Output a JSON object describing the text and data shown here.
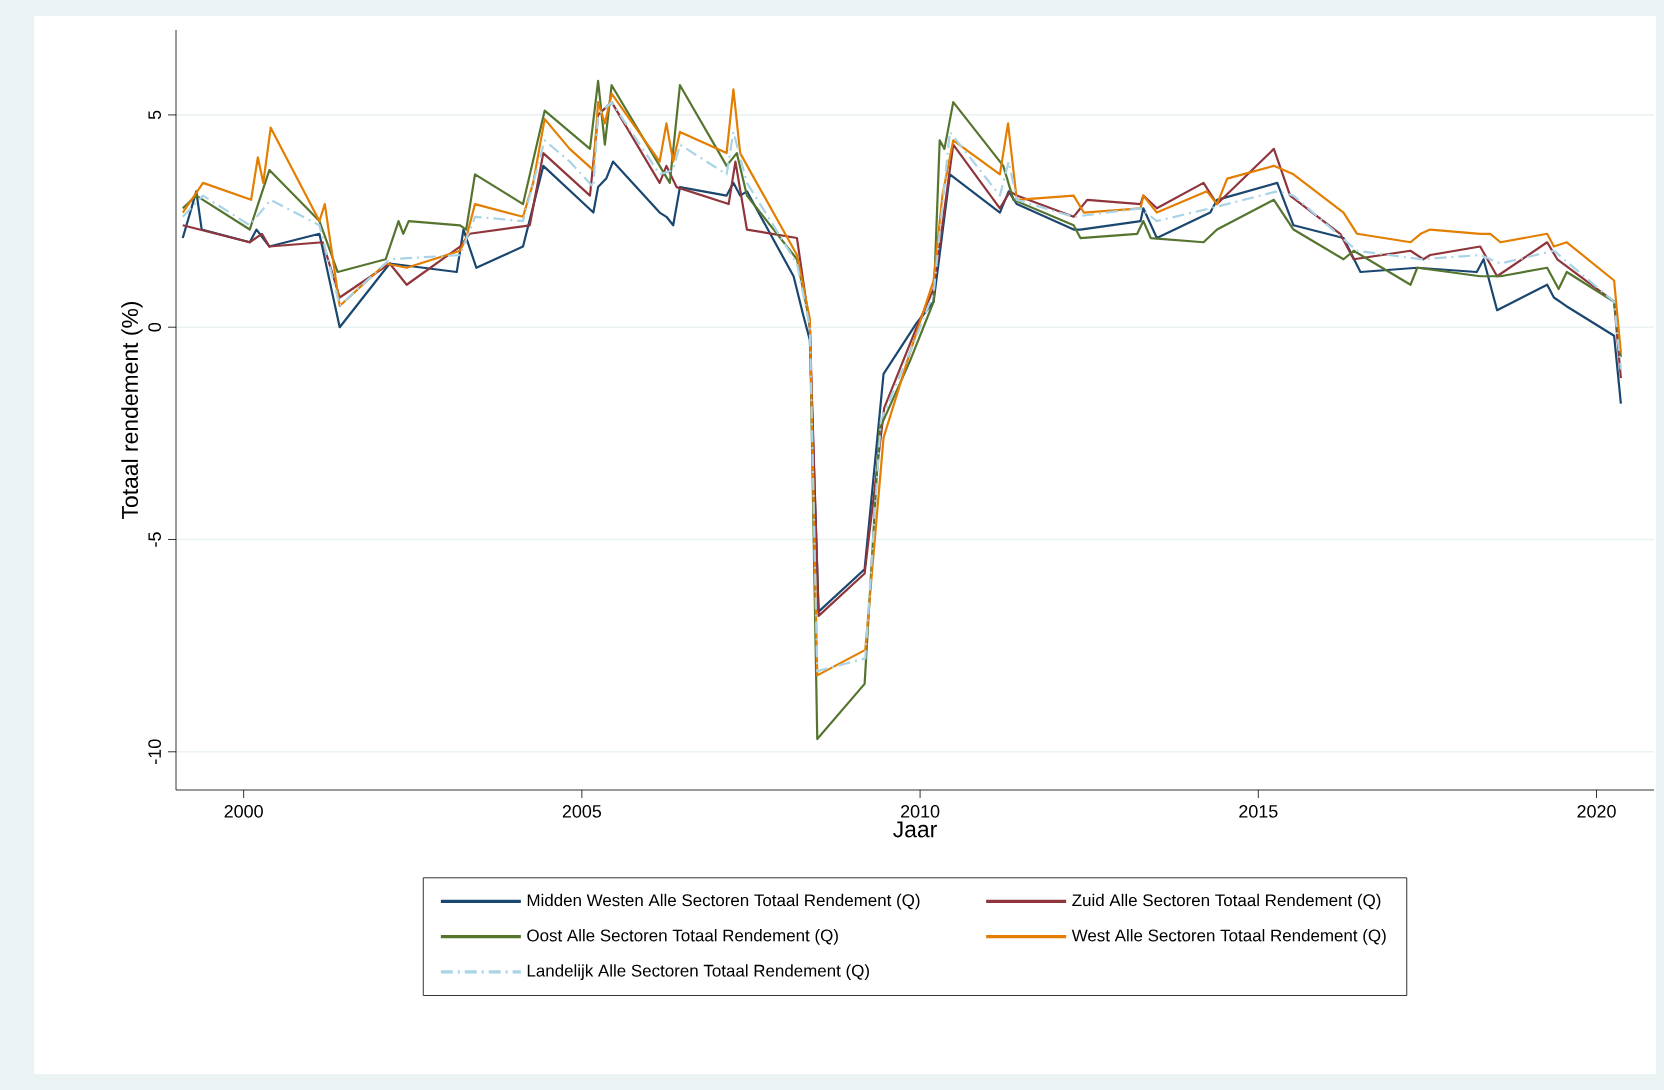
{
  "chart_data": {
    "type": "line",
    "xlabel": "Jaar",
    "ylabel": "Totaal rendement (%)",
    "xlim": [
      1999,
      2020.85
    ],
    "ylim": [
      -10.9,
      7
    ],
    "xticks": [
      2000,
      2005,
      2010,
      2015,
      2020
    ],
    "yticks": [
      -10,
      -5,
      0,
      5
    ],
    "grid": "y",
    "legend": "bottom",
    "marker": "none",
    "series": [
      {
        "name": "Midden Westen Alle Sectoren Totaal Rendement (Q)",
        "color": "#1a476f",
        "line_style": "solid",
        "x": [
          1999.1,
          1999.3,
          1999.38,
          2000.09,
          2000.19,
          2000.38,
          2001.12,
          2001.42,
          2002.16,
          2003.15,
          2003.25,
          2003.44,
          2004.13,
          2004.43,
          2005.17,
          2005.24,
          2005.36,
          2005.46,
          2006.15,
          2006.25,
          2006.35,
          2006.45,
          2007.14,
          2007.24,
          2007.34,
          2007.44,
          2008.13,
          2008.27,
          2008.37,
          2008.5,
          2009.18,
          2009.46,
          2009.95,
          2010.2,
          2010.44,
          2011.18,
          2011.31,
          2011.43,
          2012.27,
          2012.37,
          2013.26,
          2013.3,
          2013.5,
          2014.29,
          2014.39,
          2015.28,
          2015.52,
          2016.26,
          2016.51,
          2017.35,
          2018.23,
          2018.33,
          2018.53,
          2019.27,
          2019.37,
          2019.55,
          2020.26,
          2020.36
        ],
        "values": [
          2.1,
          3.2,
          2.3,
          2.0,
          2.3,
          1.9,
          2.2,
          0.0,
          1.5,
          1.3,
          2.3,
          1.4,
          1.9,
          3.8,
          2.7,
          3.3,
          3.5,
          3.9,
          2.7,
          2.6,
          2.4,
          3.3,
          3.1,
          3.4,
          3.1,
          3.2,
          1.2,
          0.3,
          -0.3,
          -6.7,
          -5.7,
          -1.1,
          0.1,
          0.6,
          3.6,
          2.7,
          3.2,
          2.9,
          2.3,
          2.3,
          2.5,
          2.8,
          2.1,
          2.7,
          3.0,
          3.4,
          2.4,
          2.1,
          1.3,
          1.4,
          1.3,
          1.6,
          0.4,
          1.0,
          0.7,
          0.5,
          -0.2,
          -1.8
        ]
      },
      {
        "name": "Zuid Alle Sectoren Totaal Rendement (Q)",
        "color": "#90353b",
        "line_style": "solid",
        "x": [
          1999.1,
          2000.09,
          2000.27,
          2000.38,
          2001.17,
          2001.42,
          2002.16,
          2002.41,
          2003.2,
          2003.34,
          2004.23,
          2004.43,
          2005.12,
          2005.24,
          2005.44,
          2006.15,
          2006.25,
          2006.4,
          2007.17,
          2007.27,
          2007.44,
          2008.18,
          2008.37,
          2008.5,
          2009.18,
          2009.47,
          2009.95,
          2010.2,
          2010.49,
          2011.18,
          2011.33,
          2011.43,
          2012.27,
          2012.47,
          2013.26,
          2013.3,
          2013.5,
          2014.19,
          2014.39,
          2015.23,
          2015.47,
          2016.21,
          2016.41,
          2017.25,
          2017.44,
          2017.54,
          2018.28,
          2018.53,
          2019.27,
          2019.42,
          2020.26,
          2020.36
        ],
        "values": [
          2.4,
          2.0,
          2.2,
          1.9,
          2.0,
          0.7,
          1.5,
          1.0,
          1.9,
          2.2,
          2.4,
          4.1,
          3.1,
          5.0,
          5.3,
          3.4,
          3.8,
          3.3,
          2.9,
          3.9,
          2.3,
          2.1,
          0.0,
          -6.8,
          -5.8,
          -1.9,
          0.0,
          0.9,
          4.3,
          2.8,
          3.2,
          3.1,
          2.6,
          3.0,
          2.9,
          3.1,
          2.8,
          3.4,
          2.9,
          4.2,
          3.1,
          2.2,
          1.6,
          1.8,
          1.6,
          1.7,
          1.9,
          1.2,
          2.0,
          1.6,
          0.6,
          -1.2
        ]
      },
      {
        "name": "Oost Alle Sectoren Totaal Rendement (Q)",
        "color": "#55752f",
        "line_style": "solid",
        "x": [
          1999.1,
          1999.3,
          2000.09,
          2000.38,
          2001.12,
          2001.39,
          2002.1,
          2002.29,
          2002.36,
          2002.44,
          2003.2,
          2003.29,
          2003.42,
          2004.13,
          2004.45,
          2005.12,
          2005.24,
          2005.34,
          2005.44,
          2006.3,
          2006.45,
          2007.14,
          2007.29,
          2007.44,
          2008.18,
          2008.37,
          2008.48,
          2009.18,
          2009.4,
          2009.85,
          2010.2,
          2010.29,
          2010.36,
          2010.49,
          2011.23,
          2011.38,
          2012.27,
          2012.37,
          2013.21,
          2013.3,
          2013.41,
          2014.19,
          2014.39,
          2015.23,
          2015.52,
          2016.26,
          2016.41,
          2017.25,
          2017.35,
          2018.28,
          2018.58,
          2019.27,
          2019.44,
          2019.56,
          2020.26,
          2020.36
        ],
        "values": [
          2.8,
          3.1,
          2.3,
          3.7,
          2.5,
          1.3,
          1.6,
          2.5,
          2.2,
          2.5,
          2.4,
          2.3,
          3.6,
          2.9,
          5.1,
          4.2,
          5.8,
          4.3,
          5.7,
          3.4,
          5.7,
          3.8,
          4.1,
          3.1,
          1.6,
          0.1,
          -9.7,
          -8.4,
          -2.4,
          -0.8,
          0.6,
          4.4,
          4.2,
          5.3,
          3.8,
          3.0,
          2.4,
          2.1,
          2.2,
          2.5,
          2.1,
          2.0,
          2.3,
          3.0,
          2.3,
          1.6,
          1.8,
          1.0,
          1.4,
          1.2,
          1.2,
          1.4,
          0.9,
          1.3,
          0.6,
          -0.7
        ]
      },
      {
        "name": "West Alle Sectoren Totaal Rendement (Q)",
        "color": "#e37e00",
        "line_style": "solid",
        "x": [
          1999.1,
          1999.4,
          2000.11,
          2000.21,
          2000.29,
          2000.4,
          2001.12,
          2001.2,
          2001.42,
          2002.1,
          2002.41,
          2003.2,
          2003.29,
          2003.42,
          2004.13,
          2004.28,
          2004.45,
          2004.82,
          2005.17,
          2005.24,
          2005.34,
          2005.44,
          2006.15,
          2006.25,
          2006.35,
          2006.45,
          2007.14,
          2007.24,
          2007.34,
          2008.18,
          2008.37,
          2008.48,
          2009.19,
          2009.46,
          2009.85,
          2010.2,
          2010.33,
          2010.49,
          2011.18,
          2011.3,
          2011.43,
          2012.27,
          2012.42,
          2013.26,
          2013.3,
          2013.5,
          2014.24,
          2014.39,
          2014.54,
          2015.23,
          2015.52,
          2016.26,
          2016.46,
          2017.25,
          2017.4,
          2017.54,
          2018.28,
          2018.43,
          2018.58,
          2019.27,
          2019.37,
          2019.56,
          2020.26,
          2020.36
        ],
        "values": [
          2.7,
          3.4,
          3.0,
          4.0,
          3.4,
          4.7,
          2.5,
          2.9,
          0.5,
          1.5,
          1.4,
          1.8,
          2.1,
          2.9,
          2.6,
          3.4,
          4.9,
          4.2,
          3.7,
          5.3,
          4.8,
          5.5,
          3.9,
          4.8,
          3.9,
          4.6,
          4.1,
          5.6,
          4.1,
          1.7,
          0.2,
          -8.2,
          -7.6,
          -2.6,
          -0.6,
          1.1,
          3.1,
          4.4,
          3.6,
          4.8,
          3.0,
          3.1,
          2.7,
          2.8,
          3.1,
          2.7,
          3.2,
          2.9,
          3.5,
          3.8,
          3.6,
          2.7,
          2.2,
          2.0,
          2.2,
          2.3,
          2.2,
          2.2,
          2.0,
          2.2,
          1.9,
          2.0,
          1.1,
          -0.6
        ]
      },
      {
        "name": "Landelijk Alle Sectoren Totaal Rendement (Q)",
        "color": "#a9d3e6",
        "line_style": "dashdot",
        "x": [
          1999.1,
          1999.4,
          2000.09,
          2000.4,
          2001.12,
          2001.42,
          2002.16,
          2003.2,
          2003.42,
          2004.13,
          2004.45,
          2004.82,
          2005.17,
          2005.24,
          2005.44,
          2006.15,
          2006.35,
          2006.45,
          2007.14,
          2007.24,
          2007.44,
          2008.18,
          2008.37,
          2008.48,
          2009.19,
          2009.42,
          2009.9,
          2010.2,
          2010.44,
          2011.18,
          2011.31,
          2011.43,
          2012.27,
          2013.26,
          2013.5,
          2014.29,
          2015.28,
          2015.52,
          2016.46,
          2017.4,
          2018.28,
          2018.58,
          2019.37,
          2020.26,
          2020.36
        ],
        "values": [
          2.6,
          3.1,
          2.4,
          3.0,
          2.4,
          0.5,
          1.6,
          1.7,
          2.6,
          2.5,
          4.4,
          3.9,
          3.3,
          5.0,
          5.3,
          3.6,
          3.7,
          4.3,
          3.6,
          4.6,
          3.4,
          1.5,
          0.0,
          -8.1,
          -7.8,
          -2.2,
          -0.4,
          0.8,
          4.6,
          3.1,
          3.9,
          3.0,
          2.6,
          2.8,
          2.5,
          2.8,
          3.2,
          3.1,
          1.8,
          1.6,
          1.7,
          1.5,
          1.8,
          0.6,
          -1.0
        ]
      }
    ]
  }
}
